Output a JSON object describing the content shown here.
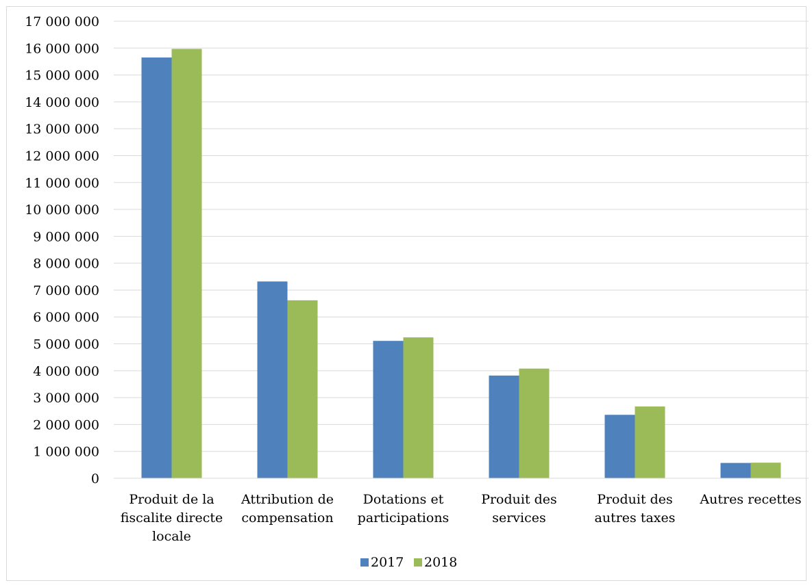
{
  "chart_data": {
    "type": "bar",
    "title": "",
    "xlabel": "",
    "ylabel": "",
    "categories": [
      [
        "Produit de la",
        "fiscalite directe",
        "locale"
      ],
      [
        "Attribution de",
        "compensation"
      ],
      [
        "Dotations et",
        "participations"
      ],
      [
        "Produit des",
        "services"
      ],
      [
        "Produit des",
        "autres taxes"
      ],
      [
        "Autres recettes"
      ]
    ],
    "series": [
      {
        "name": "2017",
        "color": "#4f81bd",
        "values": [
          15650000,
          7320000,
          5110000,
          3820000,
          2360000,
          570000
        ]
      },
      {
        "name": "2018",
        "color": "#9bbb59",
        "values": [
          15970000,
          6620000,
          5240000,
          4080000,
          2670000,
          580000
        ]
      }
    ],
    "ylim": [
      0,
      17000000
    ],
    "ytick_step": 1000000,
    "ytick_labels": [
      "0",
      "1 000 000",
      "2 000 000",
      "3 000 000",
      "4 000 000",
      "5 000 000",
      "6 000 000",
      "7 000 000",
      "8 000 000",
      "9 000 000",
      "10 000 000",
      "11 000 000",
      "12 000 000",
      "13 000 000",
      "14 000 000",
      "15 000 000",
      "16 000 000",
      "17 000 000"
    ],
    "grid": true,
    "legend_position": "bottom"
  }
}
